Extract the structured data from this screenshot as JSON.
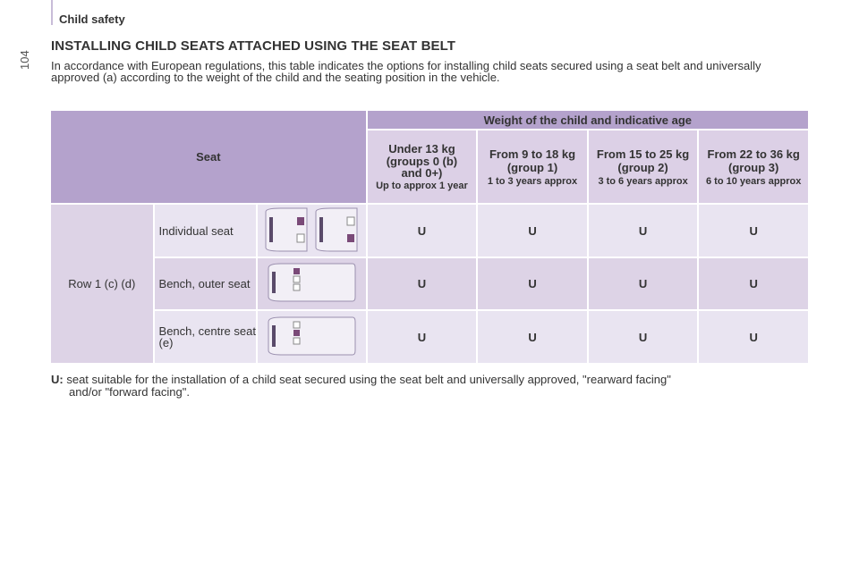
{
  "header": {
    "section": "Child safety",
    "page_number": "104"
  },
  "title": "INSTALLING CHILD SEATS ATTACHED USING THE SEAT BELT",
  "intro": "In accordance with European regulations, this table indicates the options for installing child seats secured using a seat belt and universally approved (a) according to the weight of the child and the seating position in the vehicle.",
  "table": {
    "seat_header": "Seat",
    "weight_header": "Weight of the child and indicative age",
    "groups": [
      {
        "weight": "Under 13 kg",
        "group": "(groups 0 (b) and 0+)",
        "age": "Up to approx 1 year"
      },
      {
        "weight": "From 9 to 18 kg",
        "group": "(group 1)",
        "age": "1 to 3 years approx"
      },
      {
        "weight": "From 15 to 25 kg",
        "group": "(group 2)",
        "age": "3 to 6 years approx"
      },
      {
        "weight": "From 22 to 36 kg",
        "group": "(group 3)",
        "age": "6 to 10 years approx"
      }
    ],
    "row_label": "Row 1 (c) (d)",
    "rows": [
      {
        "seat": "Individual seat",
        "values": [
          "U",
          "U",
          "U",
          "U"
        ]
      },
      {
        "seat": "Bench, outer seat",
        "values": [
          "U",
          "U",
          "U",
          "U"
        ]
      },
      {
        "seat": "Bench, centre seat (e)",
        "values": [
          "U",
          "U",
          "U",
          "U"
        ]
      }
    ]
  },
  "note": {
    "key": "U:",
    "text": "seat suitable for the installation of a child seat secured using the seat belt and universally approved, \"rearward facing\"",
    "cont": "and/or \"forward facing\"."
  },
  "colors": {
    "header": "#b4a2cc",
    "subheader": "#dcd0e6",
    "row_dark": "#ddd3e6",
    "row_light": "#e9e4f1",
    "seat_highlight": "#7a4a78"
  }
}
